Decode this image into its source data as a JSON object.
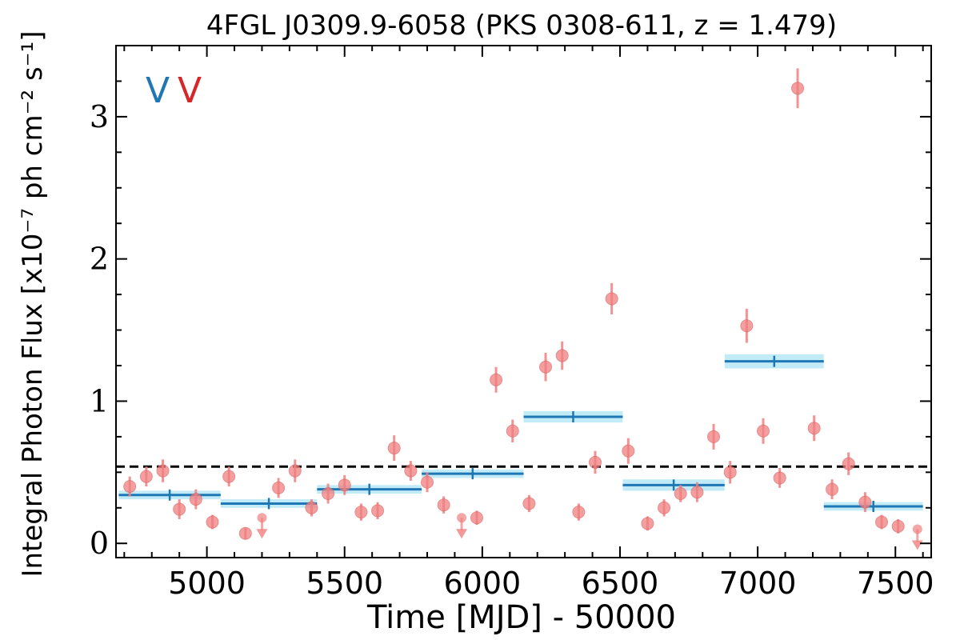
{
  "chart_data": {
    "type": "scatter",
    "title": "4FGL J0309.9-6058 (PKS 0308-611, z = 1.479)",
    "xlabel": "Time [MJD] - 50000",
    "ylabel": "Integral Photon Flux [x10⁻⁷ ph cm⁻² s⁻¹]",
    "xlim": [
      4670,
      7630
    ],
    "ylim": [
      -0.1,
      3.5
    ],
    "xticks": [
      5000,
      5500,
      6000,
      6500,
      7000,
      7500
    ],
    "yticks": [
      0,
      1,
      2,
      3
    ],
    "xtick_labels": [
      "5000",
      "5500",
      "6000",
      "6500",
      "7000",
      "7500"
    ],
    "ytick_labels": [
      "0",
      "1",
      "2",
      "3"
    ],
    "legend_markers": [
      "V",
      "V"
    ],
    "legend_colors": [
      "#1f77b4",
      "#d62728"
    ],
    "reference_line": 0.54,
    "points": {
      "name": "",
      "color": "#f08080",
      "x": [
        4720,
        4780,
        4840,
        4900,
        4960,
        5020,
        5080,
        5140,
        5260,
        5320,
        5380,
        5440,
        5500,
        5560,
        5620,
        5680,
        5740,
        5800,
        5860,
        5980,
        6050,
        6110,
        6170,
        6230,
        6290,
        6350,
        6410,
        6470,
        6530,
        6600,
        6660,
        6720,
        6780,
        6840,
        6900,
        6960,
        7020,
        7080,
        7145,
        7205,
        7270,
        7330,
        7390,
        7450,
        7510
      ],
      "y": [
        0.4,
        0.47,
        0.51,
        0.24,
        0.31,
        0.15,
        0.47,
        0.07,
        0.39,
        0.51,
        0.25,
        0.35,
        0.41,
        0.22,
        0.23,
        0.67,
        0.51,
        0.43,
        0.27,
        0.18,
        1.15,
        0.79,
        0.28,
        1.24,
        1.32,
        0.22,
        0.57,
        1.72,
        0.65,
        0.14,
        0.25,
        0.35,
        0.36,
        0.75,
        0.5,
        1.53,
        0.79,
        0.46,
        3.2,
        0.81,
        0.38,
        0.56,
        0.29,
        0.15,
        0.12
      ],
      "yerr": [
        0.07,
        0.07,
        0.08,
        0.07,
        0.07,
        0.05,
        0.07,
        0.04,
        0.07,
        0.08,
        0.06,
        0.07,
        0.07,
        0.06,
        0.06,
        0.09,
        0.07,
        0.07,
        0.06,
        0.05,
        0.09,
        0.08,
        0.06,
        0.1,
        0.1,
        0.06,
        0.08,
        0.11,
        0.09,
        0.05,
        0.06,
        0.06,
        0.07,
        0.09,
        0.08,
        0.12,
        0.09,
        0.07,
        0.14,
        0.09,
        0.07,
        0.08,
        0.07,
        0.05,
        0.05
      ]
    },
    "upper_limits": {
      "name": "",
      "x": [
        5200,
        5925,
        7580
      ],
      "y": [
        0.18,
        0.18,
        0.1
      ]
    },
    "blocks": {
      "name": "",
      "color": "#1f77b4",
      "band_color": "#aee4f5",
      "x_start": [
        4680,
        5050,
        5400,
        5780,
        6150,
        6510,
        6880,
        7240
      ],
      "x_end": [
        5050,
        5400,
        5780,
        6150,
        6510,
        6880,
        7240,
        7600
      ],
      "y": [
        0.34,
        0.28,
        0.38,
        0.49,
        0.89,
        0.41,
        1.28,
        0.26
      ],
      "band": [
        0.03,
        0.03,
        0.03,
        0.03,
        0.04,
        0.04,
        0.05,
        0.03
      ]
    },
    "grid": false
  }
}
